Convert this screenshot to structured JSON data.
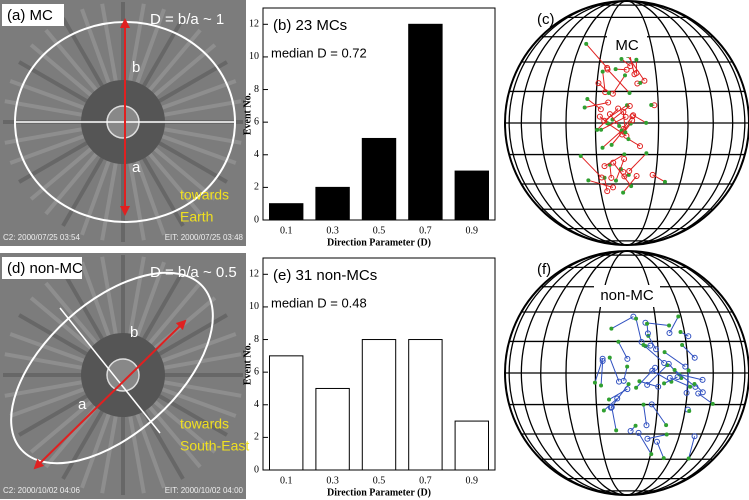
{
  "chart_data": [
    {
      "type": "bar",
      "title": "(b)  23 MCs",
      "annotation": "median D = 0.72",
      "categories": [
        "0.1",
        "0.3",
        "0.5",
        "0.7",
        "0.9"
      ],
      "values": [
        1,
        2,
        5,
        12,
        3
      ],
      "color": "#000000",
      "ylim": [
        0,
        13
      ],
      "yticks": [
        0,
        2,
        4,
        6,
        8,
        10,
        12
      ],
      "xlabel": "Direction Parameter (D)",
      "ylabel": "Event No."
    },
    {
      "type": "bar",
      "title": "(e)  31 non-MCs",
      "annotation": "median D = 0.48",
      "categories": [
        "0.1",
        "0.3",
        "0.5",
        "0.7",
        "0.9"
      ],
      "values": [
        7,
        5,
        8,
        8,
        3
      ],
      "color": "#ffffff",
      "ylim": [
        0,
        13
      ],
      "yticks": [
        0,
        2,
        4,
        6,
        8,
        10,
        12
      ],
      "xlabel": "Direction Parameter (D)",
      "ylabel": "Event No."
    }
  ],
  "images": [
    {
      "label": "(a) MC",
      "formula": "D = b/a ~ 1",
      "minor": "b",
      "major": "a",
      "direction": [
        "towards",
        "Earth"
      ],
      "timestamp_left": "C2: 2000/07/25 03:54",
      "timestamp_right": "EIT: 2000/07/25 03:48"
    },
    {
      "label": "(d) non-MC",
      "formula": "D = b/a ~ 0.5",
      "minor": "b",
      "major": "a",
      "direction": [
        "towards",
        "South-East"
      ],
      "timestamp_left": "C2: 2000/10/02 04:06",
      "timestamp_right": "EIT: 2000/10/02 04:00"
    }
  ],
  "globes": [
    {
      "label": "(c)",
      "name": "MC"
    },
    {
      "label": "(f)",
      "name": "non-MC"
    }
  ]
}
